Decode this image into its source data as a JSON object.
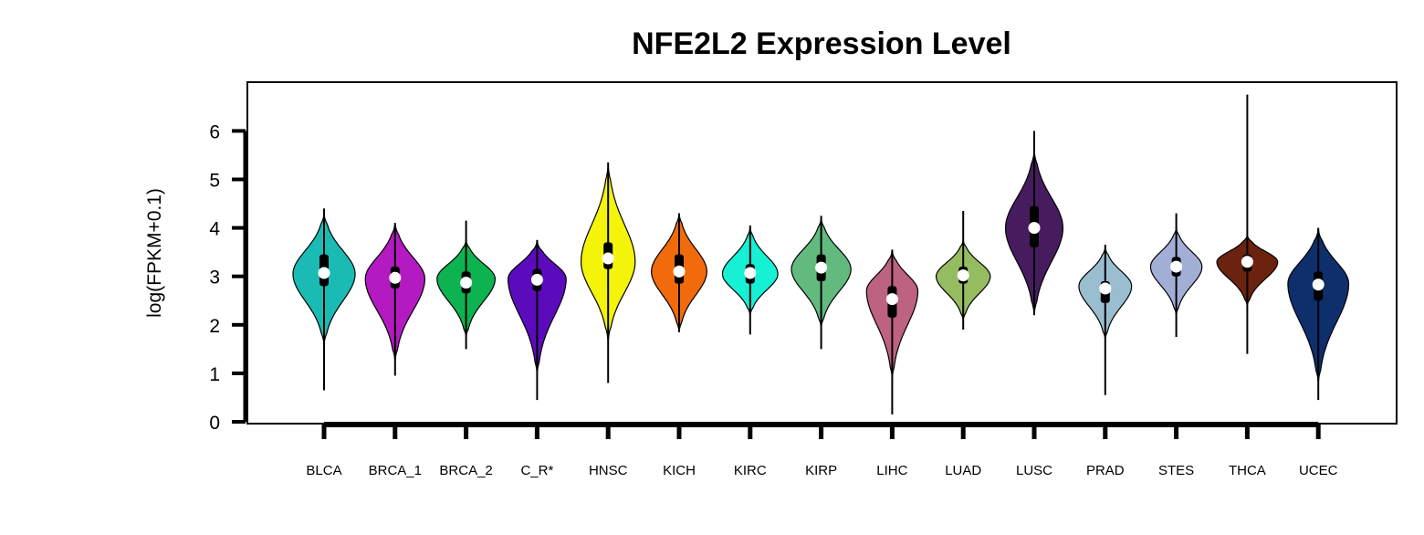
{
  "chart_data": {
    "type": "violin",
    "title": "NFE2L2 Expression Level",
    "xlabel": "",
    "ylabel": "log(FPKM+0.1)",
    "ylim": [
      0,
      6
    ],
    "yticks": [
      0,
      1,
      2,
      3,
      4,
      5,
      6
    ],
    "grid": false,
    "legend": "none",
    "categories": [
      "BLCA",
      "BRCA_1",
      "BRCA_2",
      "C_R*",
      "HNSC",
      "KICH",
      "KIRC",
      "KIRP",
      "LIHC",
      "LUAD",
      "LUSC",
      "PRAD",
      "STES",
      "THCA",
      "UCEC"
    ],
    "groups": [
      {
        "name": "BLCA",
        "color": "#1ABBB4",
        "min": 0.65,
        "max": 4.4,
        "q1": 2.8,
        "median": 3.07,
        "q3": 3.45,
        "violin_low": 1.6,
        "violin_high": 4.3,
        "mode": 3.05,
        "width_frac": 0.92
      },
      {
        "name": "BRCA_1",
        "color": "#B41AC1",
        "min": 0.95,
        "max": 4.1,
        "q1": 2.75,
        "median": 2.97,
        "q3": 3.2,
        "violin_low": 1.25,
        "violin_high": 4.1,
        "mode": 2.95,
        "width_frac": 0.88
      },
      {
        "name": "BRCA_2",
        "color": "#0DB350",
        "min": 1.5,
        "max": 4.15,
        "q1": 2.65,
        "median": 2.87,
        "q3": 3.1,
        "violin_low": 1.75,
        "violin_high": 3.75,
        "mode": 2.95,
        "width_frac": 0.86
      },
      {
        "name": "C_R*",
        "color": "#5B0BBC",
        "min": 0.45,
        "max": 3.75,
        "q1": 2.7,
        "median": 2.93,
        "q3": 3.15,
        "violin_low": 1.0,
        "violin_high": 3.75,
        "mode": 2.95,
        "width_frac": 0.86
      },
      {
        "name": "HNSC",
        "color": "#F4F40B",
        "min": 0.8,
        "max": 5.35,
        "q1": 3.15,
        "median": 3.37,
        "q3": 3.7,
        "violin_low": 1.65,
        "violin_high": 5.3,
        "mode": 3.3,
        "width_frac": 0.8
      },
      {
        "name": "KICH",
        "color": "#F16A0C",
        "min": 1.85,
        "max": 4.3,
        "q1": 2.85,
        "median": 3.1,
        "q3": 3.45,
        "violin_low": 1.85,
        "violin_high": 4.3,
        "mode": 3.1,
        "width_frac": 0.82
      },
      {
        "name": "KIRC",
        "color": "#16F0D4",
        "min": 1.8,
        "max": 4.05,
        "q1": 2.85,
        "median": 3.07,
        "q3": 3.25,
        "violin_low": 2.2,
        "violin_high": 4.0,
        "mode": 3.05,
        "width_frac": 0.82
      },
      {
        "name": "KIRP",
        "color": "#62BA7F",
        "min": 1.5,
        "max": 4.25,
        "q1": 2.9,
        "median": 3.18,
        "q3": 3.45,
        "violin_low": 1.95,
        "violin_high": 4.2,
        "mode": 3.15,
        "width_frac": 0.88
      },
      {
        "name": "LIHC",
        "color": "#BD6280",
        "min": 0.15,
        "max": 3.55,
        "q1": 2.15,
        "median": 2.53,
        "q3": 2.8,
        "violin_low": 0.9,
        "violin_high": 3.55,
        "mode": 2.7,
        "width_frac": 0.76
      },
      {
        "name": "LUAD",
        "color": "#96BC62",
        "min": 1.9,
        "max": 4.35,
        "q1": 2.85,
        "median": 3.02,
        "q3": 3.2,
        "violin_low": 2.1,
        "violin_high": 3.75,
        "mode": 3.0,
        "width_frac": 0.8
      },
      {
        "name": "LUSC",
        "color": "#461C5E",
        "min": 2.2,
        "max": 6.0,
        "q1": 3.6,
        "median": 4.0,
        "q3": 4.45,
        "violin_low": 2.2,
        "violin_high": 5.6,
        "mode": 4.0,
        "width_frac": 0.85
      },
      {
        "name": "PRAD",
        "color": "#9ABED0",
        "min": 0.55,
        "max": 3.65,
        "q1": 2.45,
        "median": 2.75,
        "q3": 2.9,
        "violin_low": 1.7,
        "violin_high": 3.6,
        "mode": 2.8,
        "width_frac": 0.78
      },
      {
        "name": "STES",
        "color": "#A2AED6",
        "min": 1.75,
        "max": 4.3,
        "q1": 3.0,
        "median": 3.2,
        "q3": 3.4,
        "violin_low": 2.2,
        "violin_high": 4.0,
        "mode": 3.2,
        "width_frac": 0.76
      },
      {
        "name": "THCA",
        "color": "#6B2310",
        "min": 1.4,
        "max": 6.75,
        "q1": 3.1,
        "median": 3.3,
        "q3": 3.45,
        "violin_low": 2.4,
        "violin_high": 3.85,
        "mode": 3.3,
        "width_frac": 0.9
      },
      {
        "name": "UCEC",
        "color": "#0E2F6C",
        "min": 0.45,
        "max": 4.0,
        "q1": 2.5,
        "median": 2.83,
        "q3": 3.1,
        "violin_low": 0.8,
        "violin_high": 4.0,
        "mode": 2.85,
        "width_frac": 0.9
      }
    ]
  }
}
